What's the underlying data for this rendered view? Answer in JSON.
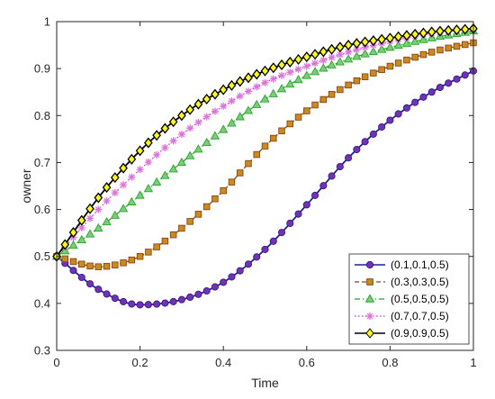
{
  "chart_data": {
    "type": "line",
    "xlabel": "Time",
    "ylabel": "owner",
    "xlim": [
      0,
      1
    ],
    "ylim": [
      0.3,
      1
    ],
    "xticks": [
      0,
      0.2,
      0.4,
      0.6,
      0.8,
      1
    ],
    "xtick_labels": [
      "0",
      "0.2",
      "0.4",
      "0.6",
      "0.8",
      "1"
    ],
    "yticks": [
      0.3,
      0.4,
      0.5,
      0.6,
      0.7,
      0.8,
      0.9,
      1
    ],
    "ytick_labels": [
      "0.3",
      "0.4",
      "0.5",
      "0.6",
      "0.7",
      "0.8",
      "0.9",
      "1"
    ],
    "grid": false,
    "legend_position": "bottom-right",
    "x": [
      0,
      0.1,
      0.2,
      0.3,
      0.4,
      0.5,
      0.6,
      0.7,
      0.8,
      0.9,
      1.0
    ],
    "marker_count": 51,
    "series": [
      {
        "name": "(0.1,0.1,0.5)",
        "color": "#1f1f9e",
        "marker_color": "#7b2fb0",
        "marker": "circle",
        "line_style": "solid",
        "values": [
          0.5,
          0.43,
          0.397,
          0.408,
          0.445,
          0.515,
          0.61,
          0.71,
          0.79,
          0.85,
          0.895
        ]
      },
      {
        "name": "(0.3,0.3,0.5)",
        "color": "#8b4513",
        "marker_color": "#cc8a1a",
        "marker": "square",
        "line_style": "dashed",
        "values": [
          0.5,
          0.478,
          0.5,
          0.56,
          0.64,
          0.735,
          0.81,
          0.865,
          0.905,
          0.935,
          0.955
        ]
      },
      {
        "name": "(0.5,0.5,0.5)",
        "color": "#22aa22",
        "marker_color": "#7dcc7d",
        "marker": "triangle",
        "line_style": "dashdot",
        "values": [
          0.5,
          0.56,
          0.63,
          0.7,
          0.77,
          0.835,
          0.885,
          0.92,
          0.945,
          0.965,
          0.98
        ]
      },
      {
        "name": "(0.7,0.7,0.5)",
        "color": "#cc33cc",
        "marker_color": "#e070e0",
        "marker": "star",
        "line_style": "dotted",
        "values": [
          0.5,
          0.6,
          0.685,
          0.76,
          0.82,
          0.87,
          0.905,
          0.935,
          0.958,
          0.975,
          0.985
        ]
      },
      {
        "name": "(0.9,0.9,0.5)",
        "color": "#000000",
        "marker_color": "#ffff00",
        "marker": "diamond",
        "line_style": "solid",
        "values": [
          0.5,
          0.625,
          0.725,
          0.8,
          0.855,
          0.895,
          0.925,
          0.95,
          0.965,
          0.978,
          0.985
        ]
      }
    ]
  }
}
